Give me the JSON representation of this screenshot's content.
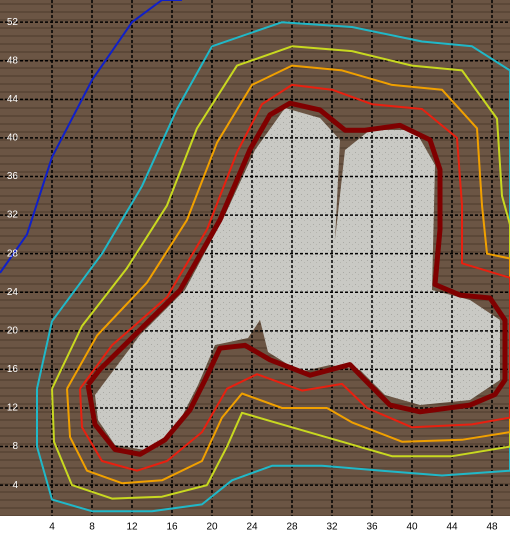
{
  "chart_data": {
    "type": "contour",
    "xlim": [
      -1.2,
      49.8
    ],
    "ylim": [
      0.8,
      54.3
    ],
    "xticks": [
      4,
      8,
      12,
      16,
      20,
      24,
      28,
      32,
      36,
      40,
      44,
      48
    ],
    "yticks": [
      4,
      8,
      12,
      16,
      20,
      24,
      28,
      32,
      36,
      40,
      44,
      48,
      52
    ],
    "grid": true,
    "grid_color": "#000000",
    "series": [
      {
        "color": "#1020c8",
        "linewidth": 2,
        "x": [
          -1.2,
          1.5,
          4,
          8,
          12,
          15,
          17
        ],
        "y": [
          26,
          30,
          38,
          46,
          52,
          54.3,
          54.3
        ]
      },
      {
        "color": "#20b8c8",
        "linewidth": 2,
        "x": [
          2.5,
          4,
          9,
          13,
          16.5,
          20,
          27,
          34,
          41,
          46,
          49.8,
          49.8,
          43,
          37,
          31,
          26,
          22,
          19,
          14,
          8,
          4,
          2.5,
          2.5
        ],
        "y": [
          14,
          21,
          28,
          35,
          43,
          49.5,
          52,
          51.5,
          50,
          49.5,
          47,
          5.5,
          5,
          5.5,
          6,
          6,
          4.5,
          2,
          1.3,
          1.3,
          2.5,
          8,
          14
        ]
      },
      {
        "color": "#c8d820",
        "linewidth": 2,
        "x": [
          4,
          7,
          11.5,
          15.5,
          18.5,
          22.5,
          28,
          34,
          40,
          45,
          48.5,
          49,
          49.8,
          49.8,
          44,
          38,
          33,
          28,
          23,
          21.5,
          19.5,
          15,
          10,
          6,
          4.2,
          4
        ],
        "y": [
          14,
          20.5,
          26.5,
          33,
          41,
          47.5,
          49.5,
          49,
          47.5,
          47,
          42,
          34,
          31,
          8,
          7,
          7,
          8.5,
          10,
          11.5,
          8,
          4,
          2.8,
          2.6,
          4,
          8.5,
          14
        ]
      },
      {
        "color": "#f0a000",
        "linewidth": 2,
        "x": [
          5.5,
          8.5,
          13.5,
          17.5,
          20.5,
          24,
          28,
          33,
          38,
          43,
          46.5,
          47,
          47.5,
          49.8,
          49.8,
          45,
          39,
          34,
          31.5,
          27,
          23,
          21,
          19,
          15,
          11,
          7.5,
          5.8,
          5.5
        ],
        "y": [
          14,
          19.5,
          25,
          31.5,
          39.5,
          45.5,
          47.5,
          47,
          45.5,
          45,
          41,
          33,
          28,
          27.5,
          9.5,
          8.7,
          8.5,
          10.5,
          12,
          12,
          13.5,
          11,
          6.5,
          4.5,
          4.2,
          5.5,
          9,
          14
        ]
      },
      {
        "color": "#e82010",
        "linewidth": 2,
        "x": [
          6.8,
          10,
          15.5,
          19.5,
          22.5,
          25,
          28,
          32,
          36,
          41,
          44.5,
          45,
          45,
          49.8,
          49.8,
          46,
          40,
          35.5,
          33,
          29,
          24.5,
          21.5,
          19,
          15.5,
          12.5,
          9,
          7,
          6.8
        ],
        "y": [
          14,
          18.5,
          23.5,
          30.5,
          38.5,
          43.5,
          45.5,
          45,
          43.5,
          43,
          40,
          33,
          27,
          25.5,
          11,
          10.3,
          10,
          12,
          14.5,
          13.8,
          15.5,
          14,
          9.5,
          6.5,
          5.5,
          6.5,
          10,
          14
        ]
      },
      {
        "color": "#800000",
        "linewidth": 5,
        "x": [
          7.6,
          8.8,
          12.8,
          16.8,
          20.8,
          23.8,
          25.8,
          27.8,
          30.8,
          33.3,
          35.3,
          38.8,
          41.8,
          42.8,
          42.8,
          42.3,
          44.8,
          47.8,
          49.3,
          49.3,
          48.3,
          45.8,
          40.8,
          37.8,
          35.3,
          33.8,
          29.8,
          25.8,
          23.3,
          20.8,
          19.3,
          17.8,
          15.3,
          12.8,
          10.3,
          8.3,
          7.6
        ],
        "y": [
          14.4,
          16,
          20.1,
          24.2,
          31.5,
          38.8,
          42.4,
          43.6,
          42.9,
          40.8,
          40.8,
          41.3,
          39.8,
          36.7,
          30.5,
          24.8,
          23.7,
          23.4,
          21.1,
          14.9,
          13.4,
          12.3,
          11.6,
          12.3,
          14.9,
          16.5,
          15.4,
          17,
          18.5,
          18.2,
          14.9,
          11.8,
          8.7,
          7.2,
          7.7,
          10.3,
          14.4
        ]
      }
    ]
  }
}
